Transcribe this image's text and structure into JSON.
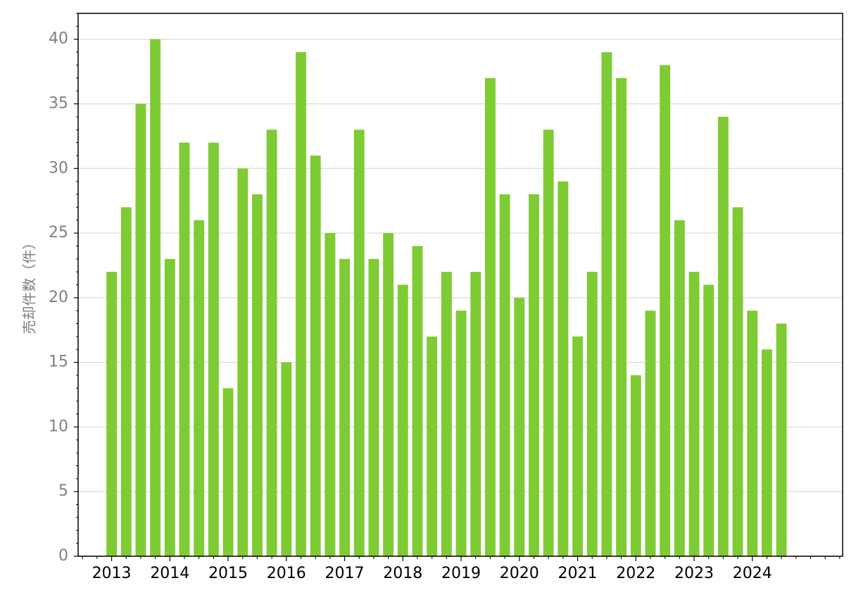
{
  "chart_data": {
    "type": "bar",
    "title": "",
    "xlabel": "",
    "ylabel": "売却件数（件）",
    "ylim": [
      0,
      42
    ],
    "yticks": [
      0,
      5,
      10,
      15,
      20,
      25,
      30,
      35,
      40
    ],
    "grid": "horizontal",
    "bar_color": "#7ecb33",
    "x_tick_labels": [
      "2013",
      "2014",
      "2015",
      "2016",
      "2017",
      "2018",
      "2019",
      "2020",
      "2021",
      "2022",
      "2023",
      "2024"
    ],
    "x_tick_year_starts": [
      2013,
      2014,
      2015,
      2016,
      2017,
      2018,
      2019,
      2020,
      2021,
      2022,
      2023,
      2024
    ],
    "categories": [
      "2013 Q1",
      "2013 Q2",
      "2013 Q3",
      "2013 Q4",
      "2014 Q1",
      "2014 Q2",
      "2014 Q3",
      "2014 Q4",
      "2015 Q1",
      "2015 Q2",
      "2015 Q3",
      "2015 Q4",
      "2016 Q1",
      "2016 Q2",
      "2016 Q3",
      "2016 Q4",
      "2017 Q1",
      "2017 Q2",
      "2017 Q3",
      "2017 Q4",
      "2018 Q1",
      "2018 Q2",
      "2018 Q3",
      "2018 Q4",
      "2019 Q1",
      "2019 Q2",
      "2019 Q3",
      "2019 Q4",
      "2020 Q1",
      "2020 Q2",
      "2020 Q3",
      "2020 Q4",
      "2021 Q1",
      "2021 Q2",
      "2021 Q3",
      "2021 Q4",
      "2022 Q1",
      "2022 Q2",
      "2022 Q3",
      "2022 Q4",
      "2023 Q1",
      "2023 Q2",
      "2023 Q3",
      "2023 Q4",
      "2024 Q1",
      "2024 Q2",
      "2024 Q3"
    ],
    "values": [
      22,
      27,
      35,
      40,
      23,
      32,
      26,
      32,
      13,
      30,
      28,
      33,
      15,
      39,
      31,
      25,
      23,
      33,
      23,
      25,
      21,
      24,
      17,
      22,
      19,
      22,
      37,
      28,
      20,
      28,
      33,
      29,
      17,
      22,
      39,
      37,
      14,
      19,
      38,
      26,
      22,
      21,
      34,
      27,
      19,
      16,
      18
    ]
  }
}
